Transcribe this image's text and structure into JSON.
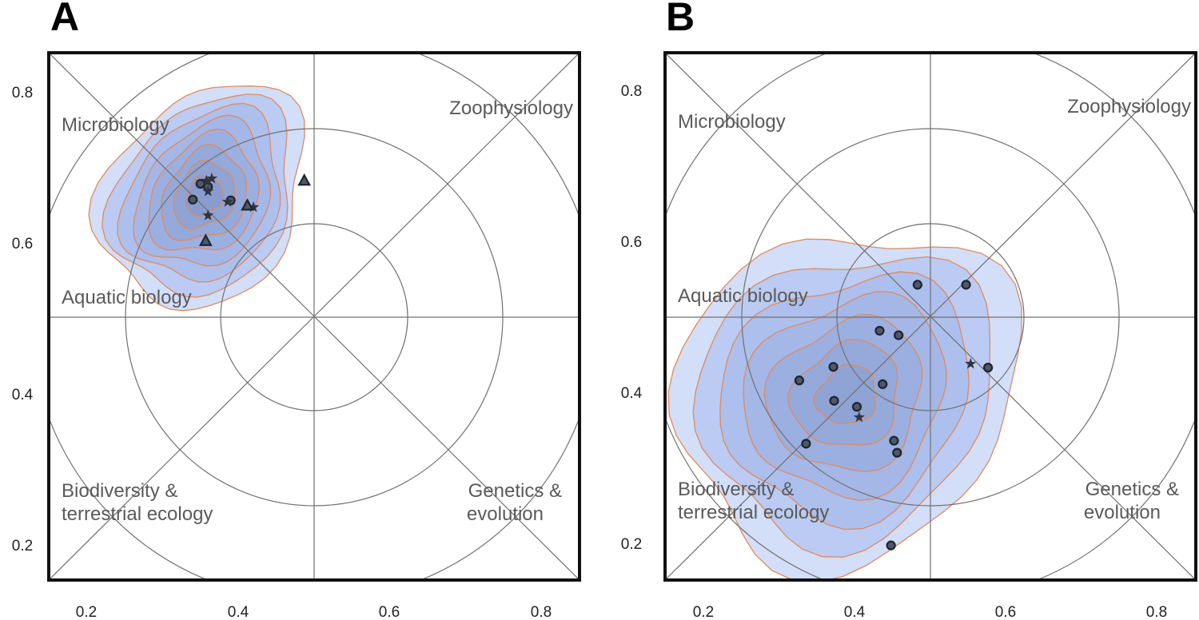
{
  "panels": [
    {
      "label": "A",
      "xticks": [
        "0.2",
        "0.4",
        "0.6",
        "0.8"
      ],
      "yticks": [
        "0.8",
        "0.6",
        "0.4",
        "0.2"
      ],
      "regions": [
        "Microbiology",
        "Zoophysiology",
        "Aquatic biology",
        "Biodiversity &",
        "terrestrial ecology",
        "Genetics &",
        "evolution"
      ],
      "chart_data": {
        "type": "scatter",
        "xlim": [
          0.15,
          0.85
        ],
        "ylim": [
          0.15,
          0.85
        ],
        "points": [
          {
            "x": 0.35,
            "y": 0.676,
            "marker": "circle"
          },
          {
            "x": 0.34,
            "y": 0.655,
            "marker": "circle"
          },
          {
            "x": 0.39,
            "y": 0.654,
            "marker": "circle"
          },
          {
            "x": 0.36,
            "y": 0.672,
            "marker": "circle"
          },
          {
            "x": 0.358,
            "y": 0.68,
            "marker": "star"
          },
          {
            "x": 0.365,
            "y": 0.683,
            "marker": "star"
          },
          {
            "x": 0.36,
            "y": 0.666,
            "marker": "star"
          },
          {
            "x": 0.386,
            "y": 0.652,
            "marker": "star"
          },
          {
            "x": 0.42,
            "y": 0.645,
            "marker": "star"
          },
          {
            "x": 0.36,
            "y": 0.634,
            "marker": "star"
          },
          {
            "x": 0.487,
            "y": 0.68,
            "marker": "triangle"
          },
          {
            "x": 0.357,
            "y": 0.6,
            "marker": "triangle"
          },
          {
            "x": 0.412,
            "y": 0.647,
            "marker": "triangle"
          }
        ],
        "density_center": [
          0.355,
          0.66
        ]
      }
    },
    {
      "label": "B",
      "xticks": [
        "0.2",
        "0.4",
        "0.6",
        "0.8"
      ],
      "yticks": [
        "0.8",
        "0.6",
        "0.4",
        "0.2"
      ],
      "regions": [
        "Microbiology",
        "Zoophysiology",
        "Aquatic biology",
        "Biodiversity &",
        "terrestrial ecology",
        "Genetics &",
        "evolution"
      ],
      "chart_data": {
        "type": "scatter",
        "xlim": [
          0.15,
          0.85
        ],
        "ylim": [
          0.15,
          0.85
        ],
        "points": [
          {
            "x": 0.483,
            "y": 0.542,
            "marker": "circle"
          },
          {
            "x": 0.547,
            "y": 0.542,
            "marker": "circle"
          },
          {
            "x": 0.433,
            "y": 0.481,
            "marker": "circle"
          },
          {
            "x": 0.458,
            "y": 0.475,
            "marker": "circle"
          },
          {
            "x": 0.372,
            "y": 0.433,
            "marker": "circle"
          },
          {
            "x": 0.576,
            "y": 0.432,
            "marker": "circle"
          },
          {
            "x": 0.327,
            "y": 0.415,
            "marker": "circle"
          },
          {
            "x": 0.437,
            "y": 0.41,
            "marker": "circle"
          },
          {
            "x": 0.373,
            "y": 0.388,
            "marker": "circle"
          },
          {
            "x": 0.403,
            "y": 0.38,
            "marker": "circle"
          },
          {
            "x": 0.336,
            "y": 0.331,
            "marker": "circle"
          },
          {
            "x": 0.452,
            "y": 0.335,
            "marker": "circle"
          },
          {
            "x": 0.456,
            "y": 0.319,
            "marker": "circle"
          },
          {
            "x": 0.448,
            "y": 0.196,
            "marker": "circle"
          },
          {
            "x": 0.553,
            "y": 0.437,
            "marker": "star"
          },
          {
            "x": 0.406,
            "y": 0.366,
            "marker": "star"
          }
        ],
        "density_center": [
          0.39,
          0.395
        ]
      }
    }
  ]
}
